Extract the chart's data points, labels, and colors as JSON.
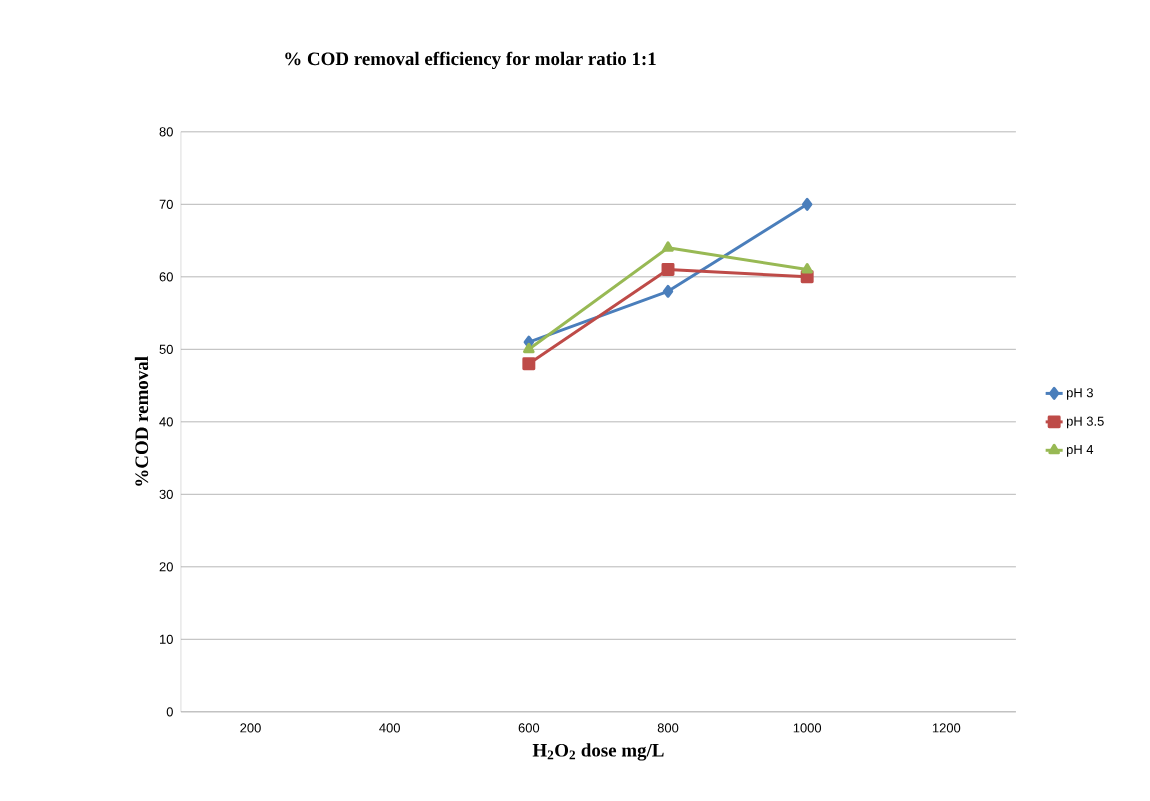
{
  "chart_data": {
    "type": "line",
    "title": "% COD removal efficiency for molar ratio 1:1",
    "xlabel": "H$_{2}$O$_{2}$ dose mg/L",
    "ylabel": "%COD removal",
    "categories": [
      "200",
      "400",
      "600",
      "800",
      "1000",
      "1200"
    ],
    "series": [
      {
        "name": "pH 3",
        "color": "#4a7ebb",
        "marker": "diamond",
        "values": [
          null,
          null,
          51,
          58,
          70,
          null
        ]
      },
      {
        "name": "pH 3.5",
        "color": "#be4b48",
        "marker": "square",
        "values": [
          null,
          null,
          48,
          61,
          60,
          null
        ]
      },
      {
        "name": "pH 4",
        "color": "#98b954",
        "marker": "triangle",
        "values": [
          null,
          null,
          50,
          64,
          61,
          null
        ]
      }
    ],
    "ylim": [
      0,
      80
    ],
    "yticks": [
      0,
      10,
      20,
      30,
      40,
      50,
      60,
      70,
      80
    ],
    "grid": "y",
    "legend": "right",
    "line_style": "solid"
  }
}
